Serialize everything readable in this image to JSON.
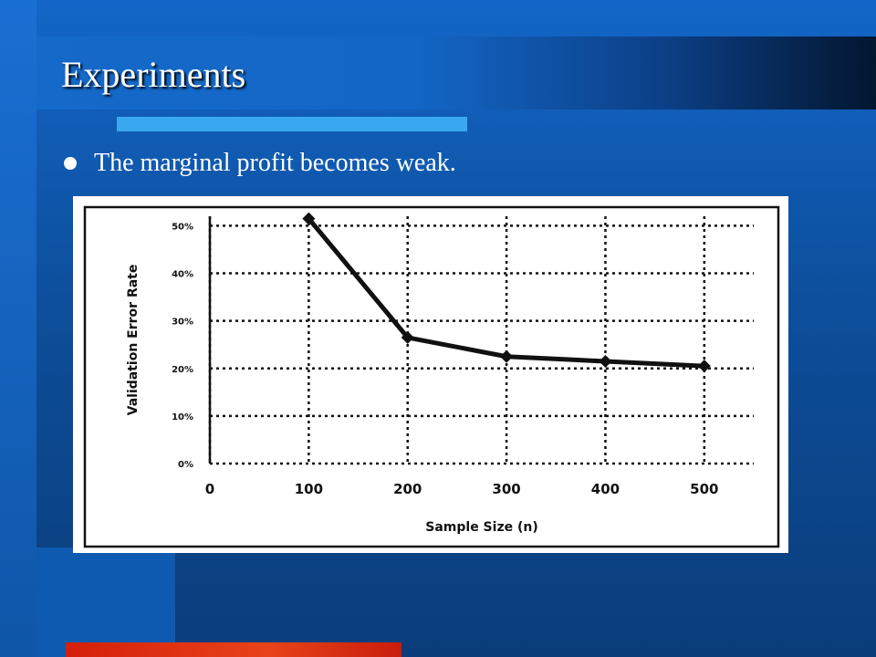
{
  "slide": {
    "title": "Experiments",
    "bullet": "The marginal profit becomes weak."
  },
  "colors": {
    "background": "#0d4f9c",
    "title_text": "#ffffff",
    "underline": "#3aa8f0",
    "accent_bar": "#d41f0a",
    "chart_ink": "#111111"
  },
  "chart_data": {
    "type": "line",
    "title": "",
    "xlabel": "Sample Size (n)",
    "ylabel": "Validation Error Rate",
    "x": [
      100,
      200,
      300,
      400,
      500
    ],
    "y": [
      51.5,
      26.5,
      22.5,
      21.5,
      20.5
    ],
    "xlim": [
      0,
      550
    ],
    "ylim": [
      0,
      52
    ],
    "x_ticks": [
      0,
      100,
      200,
      300,
      400,
      500
    ],
    "x_tick_labels": [
      "0",
      "100",
      "200",
      "300",
      "400",
      "500"
    ],
    "y_ticks": [
      0,
      10,
      20,
      30,
      40,
      50
    ],
    "y_tick_labels": [
      "0%",
      "10%",
      "20%",
      "30%",
      "40%",
      "50%"
    ],
    "grid": true,
    "grid_style": "dotted",
    "marker": "diamond"
  }
}
